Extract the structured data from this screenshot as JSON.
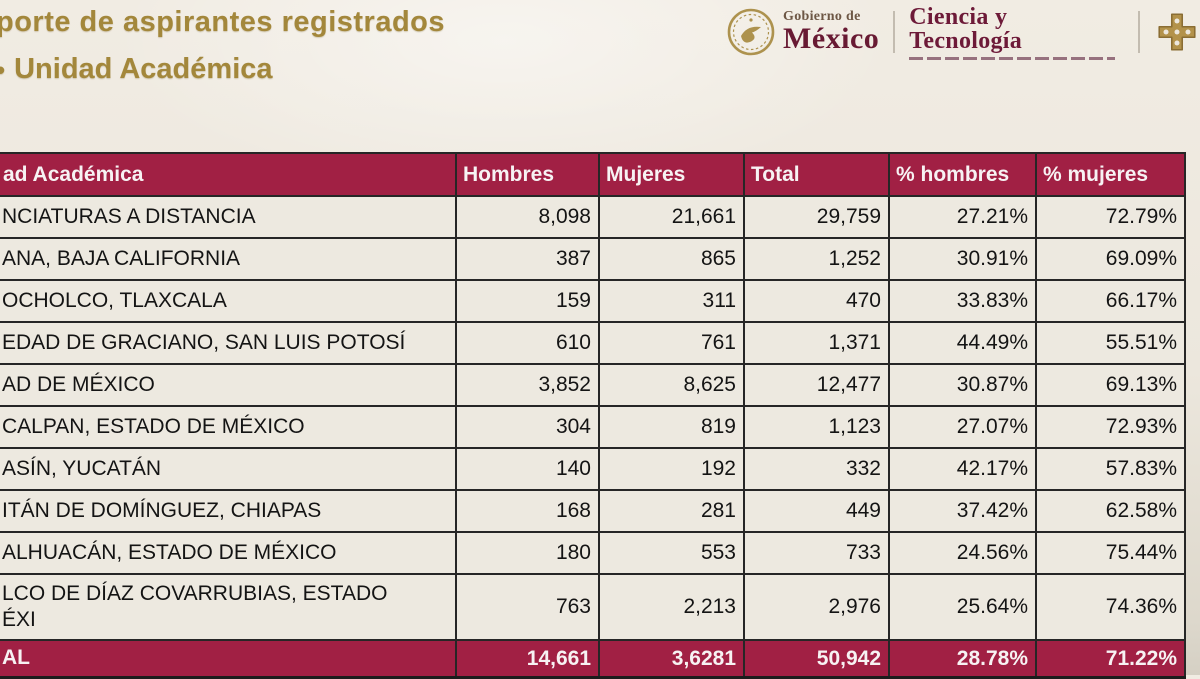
{
  "header": {
    "title_line1": "porte de aspirantes registrados",
    "title_bullet": "•",
    "title_line2": "Unidad Académica",
    "logo": {
      "gobierno_small": "Gobierno de",
      "gobierno_large": "México",
      "secretaria": "Ciencia y Tecnología"
    }
  },
  "table": {
    "columns": [
      "ad Académica",
      "Hombres",
      "Mujeres",
      "Total",
      "% hombres",
      "% mujeres"
    ],
    "rows": [
      {
        "name": "NCIATURAS A DISTANCIA",
        "hombres": "8,098",
        "mujeres": "21,661",
        "total": "29,759",
        "pct_h": "27.21%",
        "pct_m": "72.79%"
      },
      {
        "name": "ANA, BAJA CALIFORNIA",
        "hombres": "387",
        "mujeres": "865",
        "total": "1,252",
        "pct_h": "30.91%",
        "pct_m": "69.09%"
      },
      {
        "name": "OCHOLCO, TLAXCALA",
        "hombres": "159",
        "mujeres": "311",
        "total": "470",
        "pct_h": "33.83%",
        "pct_m": "66.17%"
      },
      {
        "name": "EDAD DE GRACIANO, SAN LUIS POTOSÍ",
        "hombres": "610",
        "mujeres": "761",
        "total": "1,371",
        "pct_h": "44.49%",
        "pct_m": "55.51%"
      },
      {
        "name": "AD DE MÉXICO",
        "hombres": "3,852",
        "mujeres": "8,625",
        "total": "12,477",
        "pct_h": "30.87%",
        "pct_m": "69.13%"
      },
      {
        "name": "CALPAN, ESTADO DE MÉXICO",
        "hombres": "304",
        "mujeres": "819",
        "total": "1,123",
        "pct_h": "27.07%",
        "pct_m": "72.93%"
      },
      {
        "name": "ASÍN, YUCATÁN",
        "hombres": "140",
        "mujeres": "192",
        "total": "332",
        "pct_h": "42.17%",
        "pct_m": "57.83%"
      },
      {
        "name": "ITÁN DE DOMÍNGUEZ, CHIAPAS",
        "hombres": "168",
        "mujeres": "281",
        "total": "449",
        "pct_h": "37.42%",
        "pct_m": "62.58%"
      },
      {
        "name": "ALHUACÁN, ESTADO DE MÉXICO",
        "hombres": "180",
        "mujeres": "553",
        "total": "733",
        "pct_h": "24.56%",
        "pct_m": "75.44%"
      },
      {
        "name": "LCO DE DÍAZ COVARRUBIAS, ESTADO",
        "name2": "ÉXI",
        "hombres": "763",
        "mujeres": "2,213",
        "total": "2,976",
        "pct_h": "25.64%",
        "pct_m": "74.36%"
      }
    ],
    "total_row": {
      "name": "AL",
      "hombres": "14,661",
      "mujeres": "3,6281",
      "total": "50,942",
      "pct_h": "28.78%",
      "pct_m": "71.22%"
    }
  },
  "colors": {
    "maroon": "#a12044",
    "gold_title": "#a3873b",
    "logo_maroon": "#681a33",
    "table_border": "#262626",
    "background": "#ece7dd"
  }
}
